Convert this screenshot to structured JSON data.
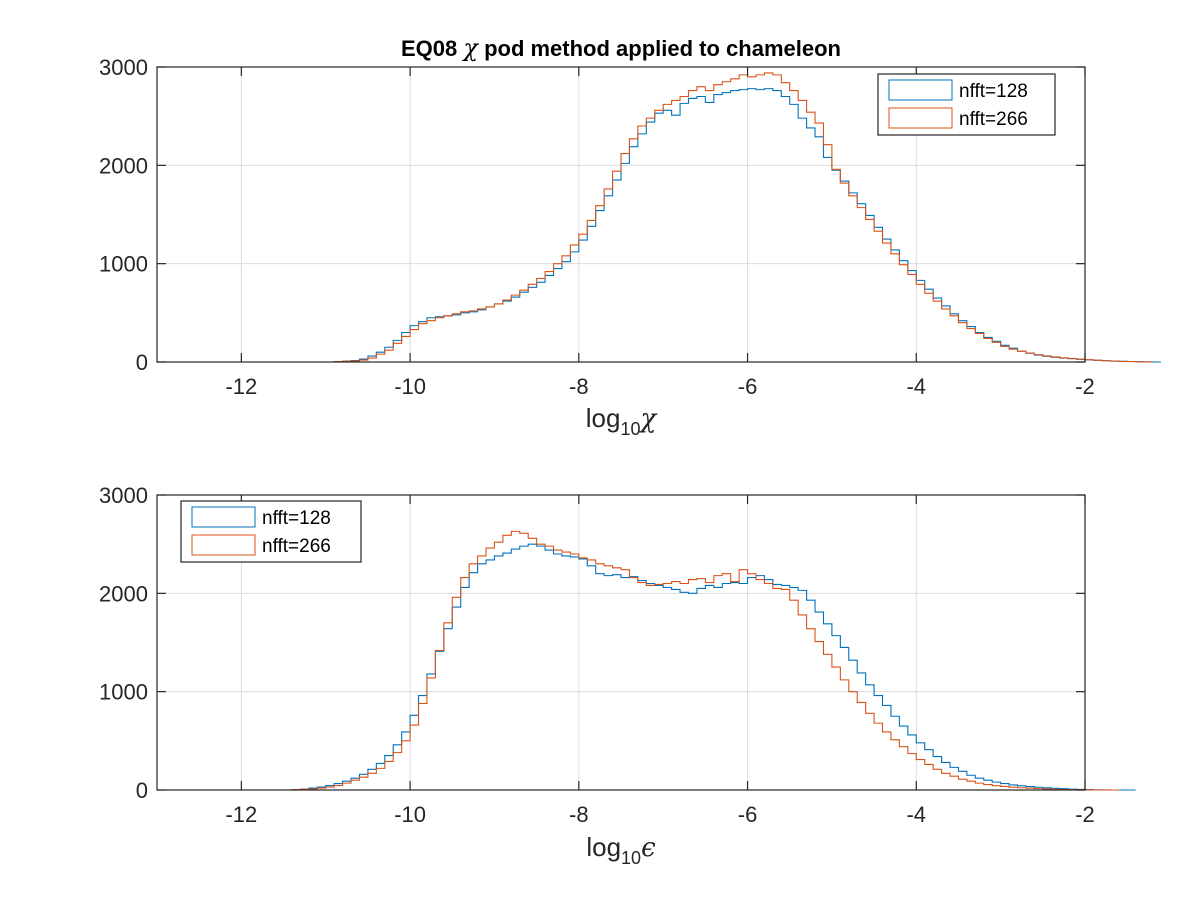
{
  "colors": {
    "series1": "#0072BD",
    "series2": "#D95319",
    "grid": "#dcdcdc",
    "axis": "#262626"
  },
  "chart_data": [
    {
      "type": "line",
      "style": "stairs-histogram",
      "title_prefix": "EQ08",
      "title_symbol": "χ",
      "title_suffix": "pod method applied to chameleon",
      "xlabel_base": "log",
      "xlabel_sub": "10",
      "xlabel_symbol": "χ",
      "xlim": [
        -13,
        -2
      ],
      "ylim": [
        0,
        3000
      ],
      "xticks": [
        -12,
        -10,
        -8,
        -6,
        -4,
        -2
      ],
      "yticks": [
        0,
        1000,
        2000,
        3000
      ],
      "grid": true,
      "legend_position": "top-right",
      "bin_start": -11.5,
      "bin_width": 0.1,
      "series": [
        {
          "name": "nfft=128",
          "color": "#0072BD",
          "values": [
            0,
            0,
            0,
            0,
            0,
            0,
            5,
            10,
            15,
            30,
            60,
            100,
            150,
            220,
            300,
            370,
            410,
            450,
            460,
            470,
            480,
            500,
            510,
            530,
            560,
            590,
            620,
            660,
            710,
            760,
            810,
            880,
            950,
            1020,
            1120,
            1240,
            1380,
            1540,
            1690,
            1850,
            2020,
            2190,
            2320,
            2440,
            2530,
            2560,
            2510,
            2630,
            2680,
            2700,
            2640,
            2720,
            2740,
            2760,
            2770,
            2780,
            2770,
            2780,
            2760,
            2700,
            2620,
            2480,
            2380,
            2290,
            2080,
            1950,
            1840,
            1720,
            1610,
            1490,
            1370,
            1250,
            1140,
            1030,
            930,
            830,
            740,
            650,
            570,
            490,
            420,
            360,
            300,
            250,
            210,
            170,
            140,
            110,
            90,
            70,
            58,
            48,
            40,
            33,
            27,
            22,
            17,
            13,
            10,
            7,
            5,
            3,
            2,
            0
          ]
        },
        {
          "name": "nfft=266",
          "color": "#D95319",
          "values": [
            0,
            0,
            0,
            0,
            0,
            0,
            5,
            8,
            10,
            20,
            40,
            80,
            120,
            190,
            260,
            330,
            390,
            420,
            450,
            470,
            490,
            510,
            520,
            540,
            560,
            590,
            630,
            680,
            730,
            790,
            850,
            920,
            1000,
            1080,
            1190,
            1300,
            1440,
            1590,
            1760,
            1940,
            2120,
            2270,
            2400,
            2480,
            2560,
            2620,
            2660,
            2700,
            2760,
            2800,
            2760,
            2820,
            2850,
            2880,
            2920,
            2900,
            2920,
            2940,
            2920,
            2840,
            2760,
            2660,
            2540,
            2430,
            2210,
            1960,
            1820,
            1690,
            1570,
            1450,
            1330,
            1210,
            1100,
            990,
            890,
            790,
            700,
            620,
            540,
            470,
            400,
            340,
            290,
            240,
            200,
            160,
            130,
            110,
            90,
            75,
            62,
            52,
            43,
            36,
            29,
            23,
            18,
            13,
            9,
            6,
            4,
            2,
            0
          ]
        }
      ]
    },
    {
      "type": "line",
      "style": "stairs-histogram",
      "xlabel_base": "log",
      "xlabel_sub": "10",
      "xlabel_symbol": "ϵ",
      "xlim": [
        -13,
        -2
      ],
      "ylim": [
        0,
        3000
      ],
      "xticks": [
        -12,
        -10,
        -8,
        -6,
        -4,
        -2
      ],
      "yticks": [
        0,
        1000,
        2000,
        3000
      ],
      "grid": true,
      "legend_position": "top-left",
      "bin_start": -12.0,
      "bin_width": 0.1,
      "series": [
        {
          "name": "nfft=128",
          "color": "#0072BD",
          "values": [
            0,
            0,
            0,
            0,
            0,
            0,
            5,
            10,
            20,
            30,
            45,
            65,
            90,
            120,
            160,
            210,
            270,
            350,
            460,
            590,
            760,
            960,
            1180,
            1410,
            1640,
            1860,
            2060,
            2210,
            2300,
            2340,
            2380,
            2410,
            2450,
            2480,
            2500,
            2480,
            2440,
            2400,
            2380,
            2370,
            2350,
            2280,
            2200,
            2180,
            2190,
            2160,
            2170,
            2130,
            2100,
            2080,
            2060,
            2040,
            2010,
            2000,
            2050,
            2080,
            2060,
            2100,
            2110,
            2100,
            2160,
            2180,
            2140,
            2090,
            2080,
            2060,
            2030,
            1930,
            1810,
            1690,
            1570,
            1450,
            1320,
            1190,
            1070,
            960,
            860,
            750,
            650,
            560,
            480,
            410,
            340,
            280,
            230,
            190,
            150,
            120,
            100,
            80,
            65,
            52,
            43,
            35,
            28,
            22,
            17,
            13,
            9,
            6,
            4,
            2,
            1,
            0,
            0,
            0
          ]
        },
        {
          "name": "nfft=266",
          "color": "#D95319",
          "values": [
            0,
            0,
            0,
            0,
            0,
            0,
            5,
            8,
            10,
            20,
            30,
            45,
            70,
            100,
            130,
            170,
            220,
            290,
            380,
            500,
            660,
            880,
            1140,
            1420,
            1700,
            1960,
            2160,
            2300,
            2380,
            2460,
            2520,
            2590,
            2630,
            2610,
            2560,
            2500,
            2480,
            2440,
            2420,
            2400,
            2360,
            2340,
            2300,
            2280,
            2260,
            2240,
            2160,
            2110,
            2080,
            2090,
            2100,
            2120,
            2100,
            2140,
            2150,
            2110,
            2180,
            2200,
            2120,
            2240,
            2200,
            2140,
            2100,
            2050,
            2040,
            1930,
            1780,
            1640,
            1510,
            1380,
            1250,
            1120,
            1000,
            890,
            780,
            680,
            590,
            510,
            440,
            370,
            310,
            260,
            210,
            170,
            140,
            110,
            90,
            70,
            55,
            44,
            36,
            29,
            23,
            18,
            14,
            10,
            7,
            5,
            3,
            2,
            1,
            0,
            0,
            0
          ]
        }
      ]
    }
  ]
}
